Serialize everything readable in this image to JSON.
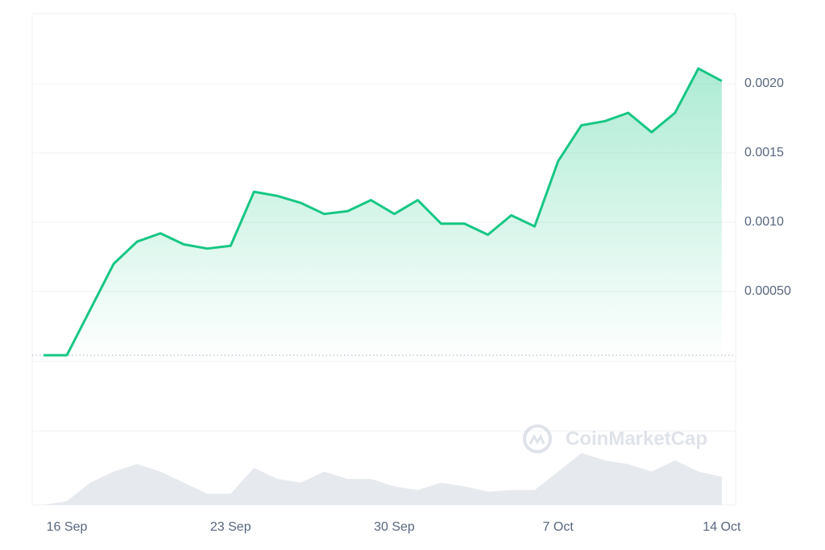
{
  "chart_data": {
    "type": "line",
    "x": [
      "15 Sep",
      "16 Sep",
      "17 Sep",
      "18 Sep",
      "19 Sep",
      "20 Sep",
      "21 Sep",
      "22 Sep",
      "23 Sep",
      "24 Sep",
      "25 Sep",
      "26 Sep",
      "27 Sep",
      "28 Sep",
      "29 Sep",
      "30 Sep",
      "1 Oct",
      "2 Oct",
      "3 Oct",
      "4 Oct",
      "5 Oct",
      "6 Oct",
      "7 Oct",
      "8 Oct",
      "9 Oct",
      "10 Oct",
      "11 Oct",
      "12 Oct",
      "13 Oct",
      "14 Oct"
    ],
    "series": [
      {
        "color": "#16c784",
        "values": [
          4e-05,
          4e-05,
          0.00037,
          0.0007,
          0.00086,
          0.00092,
          0.00084,
          0.00081,
          0.00083,
          0.00122,
          0.00119,
          0.00114,
          0.00106,
          0.00108,
          0.00116,
          0.00106,
          0.00116,
          0.00099,
          0.00099,
          0.00091,
          0.00105,
          0.00097,
          0.00144,
          0.0017,
          0.00173,
          0.00179,
          0.00165,
          0.00179,
          0.00211,
          0.00202
        ]
      }
    ],
    "volume": {
      "color": "#e6e9ed",
      "values": [
        0,
        5,
        30,
        45,
        55,
        45,
        30,
        15,
        15,
        50,
        35,
        30,
        45,
        35,
        35,
        25,
        20,
        30,
        25,
        18,
        20,
        20,
        45,
        70,
        60,
        55,
        45,
        60,
        45,
        38
      ],
      "ylim": [
        0,
        100
      ]
    },
    "ylim": [
      0,
      0.0025
    ],
    "yticks": [
      {
        "value": 0.0005,
        "label": "0.00050"
      },
      {
        "value": 0.001,
        "label": "0.0010"
      },
      {
        "value": 0.0015,
        "label": "0.0015"
      },
      {
        "value": 0.002,
        "label": "0.0020"
      }
    ],
    "xticks": [
      "16 Sep",
      "23 Sep",
      "30 Sep",
      "7 Oct",
      "14 Oct"
    ],
    "grid": true,
    "watermark": "CoinMarketCap"
  }
}
